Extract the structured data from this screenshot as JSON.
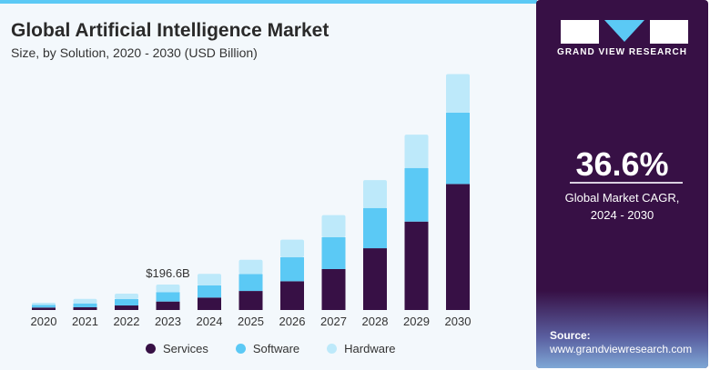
{
  "title": "Global Artificial Intelligence Market",
  "subtitle": "Size, by Solution, 2020 - 2030 (USD Billion)",
  "chart_data": {
    "type": "bar",
    "stacked": true,
    "categories": [
      "2020",
      "2021",
      "2022",
      "2023",
      "2024",
      "2025",
      "2026",
      "2027",
      "2028",
      "2029",
      "2030"
    ],
    "series": [
      {
        "name": "Services",
        "color": "#371045",
        "values": [
          19,
          21,
          35,
          65.5,
          96,
          147,
          222,
          316,
          477,
          683,
          973
        ]
      },
      {
        "name": "Software",
        "color": "#5bc9f5",
        "values": [
          21,
          30,
          49,
          72.5,
          94,
          131,
          185,
          246,
          311,
          414,
          552
        ]
      },
      {
        "name": "Hardware",
        "color": "#bde9fa",
        "values": [
          16,
          35,
          42,
          58.6,
          89,
          110,
          136,
          171,
          215,
          257,
          297
        ]
      }
    ],
    "annotations": [
      {
        "category": "2023",
        "text": "$196.6B"
      }
    ],
    "ylim": [
      0,
      1850
    ],
    "grid": false,
    "legend": "bottom"
  },
  "sidebar": {
    "brand": "GRAND VIEW RESEARCH",
    "cagr": "36.6%",
    "cagr_label_1": "Global Market CAGR,",
    "cagr_label_2": "2024 - 2030",
    "source_label": "Source:",
    "source_url": "www.grandviewresearch.com"
  }
}
